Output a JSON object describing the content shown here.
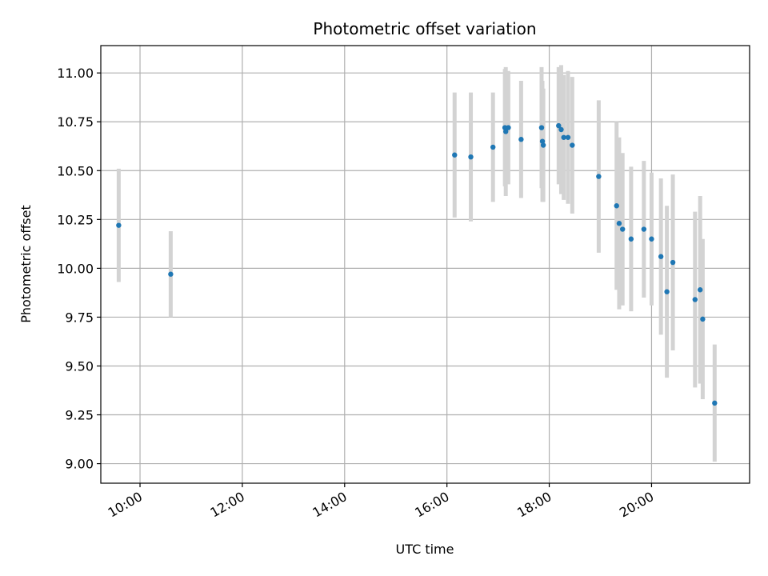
{
  "chart_data": {
    "type": "scatter",
    "title": "Photometric offset variation",
    "xlabel": "UTC time",
    "ylabel": "Photometric offset",
    "xlim": [
      "09:14",
      "21:55"
    ],
    "ylim": [
      8.9,
      11.14
    ],
    "x_ticks": [
      "10:00",
      "12:00",
      "14:00",
      "16:00",
      "18:00",
      "20:00"
    ],
    "y_ticks": [
      "9.00",
      "9.25",
      "9.50",
      "9.75",
      "10.00",
      "10.25",
      "10.50",
      "10.75",
      "11.00"
    ],
    "grid": true,
    "marker_color": "#1f77b4",
    "errorbar_color": "#d3d3d3",
    "series": [
      {
        "points": [
          {
            "x": "09:35",
            "y": 10.22,
            "err": 0.29
          },
          {
            "x": "10:36",
            "y": 9.97,
            "err": 0.22
          },
          {
            "x": "16:09",
            "y": 10.58,
            "err": 0.32
          },
          {
            "x": "16:28",
            "y": 10.57,
            "err": 0.33
          },
          {
            "x": "16:54",
            "y": 10.62,
            "err": 0.28
          },
          {
            "x": "17:08",
            "y": 10.72,
            "err": 0.3
          },
          {
            "x": "17:09",
            "y": 10.7,
            "err": 0.33
          },
          {
            "x": "17:12",
            "y": 10.72,
            "err": 0.29
          },
          {
            "x": "17:27",
            "y": 10.66,
            "err": 0.3
          },
          {
            "x": "17:51",
            "y": 10.72,
            "err": 0.31
          },
          {
            "x": "17:52",
            "y": 10.65,
            "err": 0.31
          },
          {
            "x": "17:53",
            "y": 10.63,
            "err": 0.29
          },
          {
            "x": "18:11",
            "y": 10.73,
            "err": 0.3
          },
          {
            "x": "18:14",
            "y": 10.71,
            "err": 0.33
          },
          {
            "x": "18:17",
            "y": 10.67,
            "err": 0.32
          },
          {
            "x": "18:22",
            "y": 10.67,
            "err": 0.34
          },
          {
            "x": "18:27",
            "y": 10.63,
            "err": 0.35
          },
          {
            "x": "18:58",
            "y": 10.47,
            "err": 0.39
          },
          {
            "x": "19:19",
            "y": 10.32,
            "err": 0.43
          },
          {
            "x": "19:22",
            "y": 10.23,
            "err": 0.44
          },
          {
            "x": "19:26",
            "y": 10.2,
            "err": 0.39
          },
          {
            "x": "19:36",
            "y": 10.15,
            "err": 0.37
          },
          {
            "x": "19:51",
            "y": 10.2,
            "err": 0.35
          },
          {
            "x": "20:00",
            "y": 10.15,
            "err": 0.34
          },
          {
            "x": "20:11",
            "y": 10.06,
            "err": 0.4
          },
          {
            "x": "20:18",
            "y": 9.88,
            "err": 0.44
          },
          {
            "x": "20:25",
            "y": 10.03,
            "err": 0.45
          },
          {
            "x": "20:51",
            "y": 9.84,
            "err": 0.45
          },
          {
            "x": "20:57",
            "y": 9.89,
            "err": 0.48
          },
          {
            "x": "21:00",
            "y": 9.74,
            "err": 0.41
          },
          {
            "x": "21:14",
            "y": 9.31,
            "err": 0.3
          }
        ]
      }
    ]
  }
}
